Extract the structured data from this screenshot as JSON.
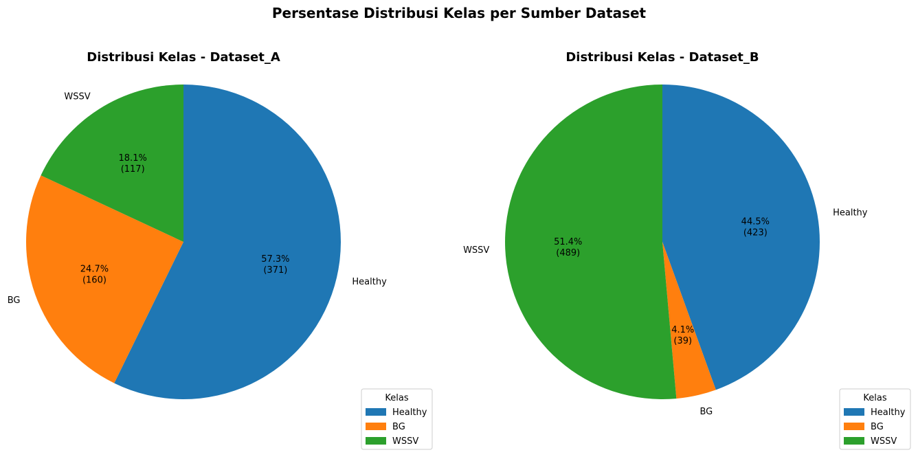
{
  "figure_title": "Persentase Distribusi Kelas per Sumber Dataset",
  "colors": {
    "Healthy": "#1f77b4",
    "BG": "#ff7f0e",
    "WSSV": "#2ca02c"
  },
  "chart_data": [
    {
      "type": "pie",
      "title": "Distribusi Kelas - Dataset_A",
      "categories": [
        "Healthy",
        "BG",
        "WSSV"
      ],
      "values": [
        371,
        160,
        117
      ],
      "percent_labels": [
        "57.3%",
        "24.7%",
        "18.1%"
      ],
      "count_labels": [
        "(371)",
        "(160)",
        "(117)"
      ],
      "start_angle_deg": 90,
      "direction": "clockwise",
      "legend": {
        "title": "Kelas",
        "entries": [
          "Healthy",
          "BG",
          "WSSV"
        ],
        "placement": "lower-right"
      }
    },
    {
      "type": "pie",
      "title": "Distribusi Kelas - Dataset_B",
      "categories": [
        "Healthy",
        "BG",
        "WSSV"
      ],
      "values": [
        423,
        39,
        489
      ],
      "percent_labels": [
        "44.5%",
        "4.1%",
        "51.4%"
      ],
      "count_labels": [
        "(423)",
        "(39)",
        "(489)"
      ],
      "start_angle_deg": 90,
      "direction": "clockwise",
      "legend": {
        "title": "Kelas",
        "entries": [
          "Healthy",
          "BG",
          "WSSV"
        ],
        "placement": "lower-right"
      }
    }
  ]
}
